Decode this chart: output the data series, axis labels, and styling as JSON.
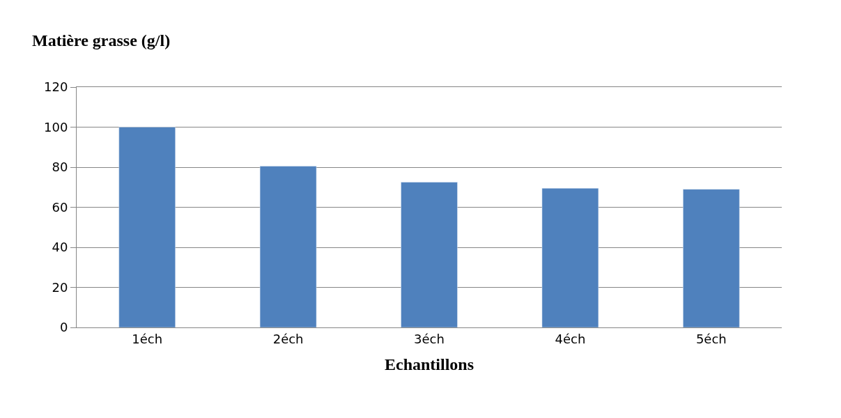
{
  "chart_data": {
    "type": "bar",
    "ylabel": "Matière grasse (g/l)",
    "xlabel": "Echantillons",
    "categories": [
      "1éch",
      "2éch",
      "3éch",
      "4éch",
      "5éch"
    ],
    "values": [
      100,
      80.5,
      72.5,
      69.5,
      69
    ],
    "color": "#4f81bd",
    "ylim": [
      0,
      120
    ],
    "yticks": [
      0,
      20,
      40,
      60,
      80,
      100,
      120
    ],
    "grid": "y"
  }
}
